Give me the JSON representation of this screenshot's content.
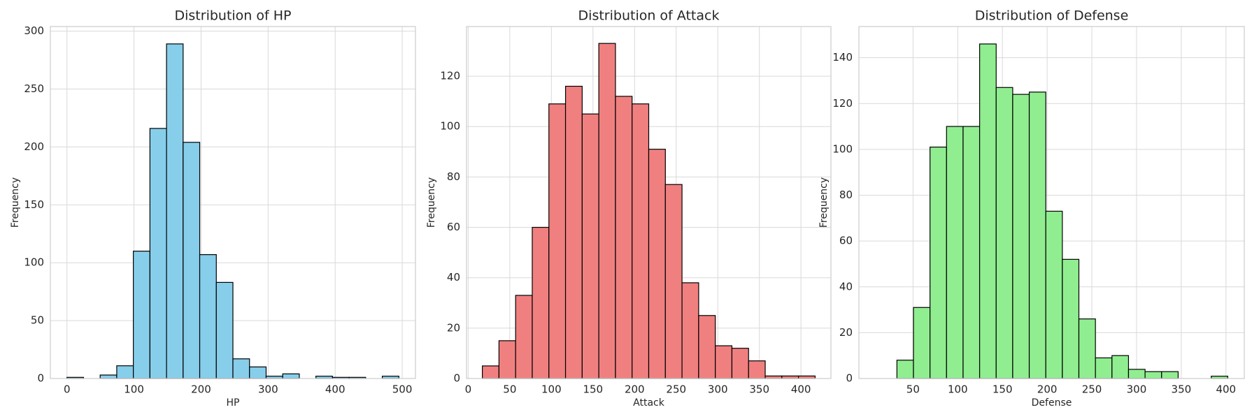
{
  "chart_data": [
    {
      "type": "histogram",
      "title": "Distribution of HP",
      "xlabel": "HP",
      "ylabel": "Frequency",
      "color": "#87ceeb",
      "bins": [
        0,
        24.75,
        49.5,
        74.25,
        99,
        123.75,
        148.5,
        173.25,
        198,
        222.75,
        247.5,
        272.25,
        297,
        321.75,
        346.5,
        371.25,
        396,
        420.75,
        445.5,
        470.25,
        495
      ],
      "values": [
        1,
        0,
        3,
        11,
        110,
        216,
        289,
        204,
        107,
        83,
        17,
        10,
        2,
        4,
        0,
        2,
        1,
        1,
        0,
        2
      ],
      "xlim": [
        -24.75,
        519.75
      ],
      "ylim": [
        0,
        304
      ],
      "xticks": [
        0,
        100,
        200,
        300,
        400,
        500
      ],
      "yticks": [
        0,
        50,
        100,
        150,
        200,
        250,
        300
      ],
      "grid": true
    },
    {
      "type": "histogram",
      "title": "Distribution of Attack",
      "xlabel": "Attack",
      "ylabel": "Frequency",
      "color": "#f08080",
      "bins": [
        17,
        37,
        57,
        77,
        97,
        117,
        137,
        157,
        177,
        197,
        217,
        237,
        257,
        277,
        297,
        317,
        337,
        357,
        377,
        397,
        417
      ],
      "values": [
        5,
        15,
        33,
        60,
        109,
        116,
        105,
        133,
        112,
        109,
        91,
        77,
        38,
        25,
        13,
        12,
        7,
        1,
        1,
        1
      ],
      "xlim": [
        -2,
        436
      ],
      "ylim": [
        0,
        139.7
      ],
      "xticks": [
        0,
        50,
        100,
        150,
        200,
        250,
        300,
        350,
        400
      ],
      "yticks": [
        0,
        20,
        40,
        60,
        80,
        100,
        120
      ],
      "grid": true
    },
    {
      "type": "histogram",
      "title": "Distribution of Defense",
      "xlabel": "Defense",
      "ylabel": "Frequency",
      "color": "#90ee90",
      "bins": [
        32,
        50.5,
        69,
        87.5,
        106,
        124.5,
        143,
        161.5,
        180,
        198.5,
        217,
        235.5,
        254,
        272.5,
        291,
        309.5,
        328,
        346.5,
        365,
        383.5,
        402
      ],
      "values": [
        8,
        31,
        101,
        110,
        110,
        146,
        127,
        124,
        125,
        73,
        52,
        26,
        9,
        10,
        4,
        3,
        3,
        0,
        0,
        1
      ],
      "xlim": [
        -10.5,
        420.5
      ],
      "ylim": [
        0,
        153.6
      ],
      "xticks": [
        50,
        100,
        150,
        200,
        250,
        300,
        350,
        400
      ],
      "yticks": [
        0,
        20,
        40,
        60,
        80,
        100,
        120,
        140
      ],
      "grid": true
    }
  ]
}
